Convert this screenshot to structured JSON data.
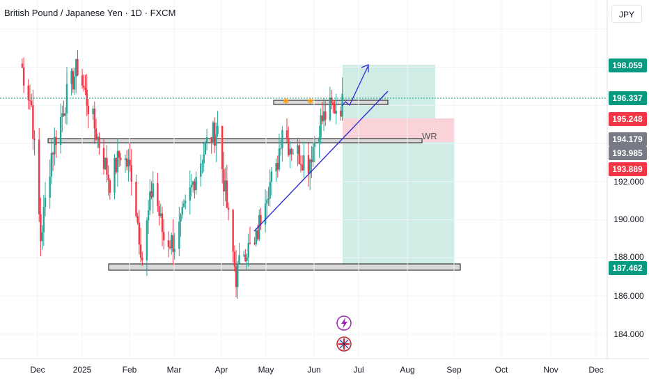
{
  "header": {
    "title": "British Pound / Japanese Yen · 1D · FXCM",
    "currency_button": "JPY"
  },
  "colors": {
    "up": "#26a69a",
    "down": "#f23645",
    "target_zone": "#b2dfd5",
    "stop_zone": "#f8c8cd",
    "trendline": "#2828d8",
    "current_price_line": "#089981"
  },
  "chart_data": {
    "type": "candlestick",
    "symbol": "GBPJPY",
    "interval": "1D",
    "ylim": [
      183.0,
      201.0
    ],
    "y_ticks": [
      "184.000",
      "186.000",
      "188.000",
      "190.000",
      "192.000"
    ],
    "x_ticks": [
      "Dec",
      "2025",
      "Feb",
      "Mar",
      "Apr",
      "May",
      "Jun",
      "Jul",
      "Aug",
      "Sep",
      "Oct",
      "Nov",
      "Dec"
    ],
    "price_labels": [
      {
        "value": "198.059",
        "kind": "target"
      },
      {
        "value": "196.337",
        "kind": "current"
      },
      {
        "value": "195.248",
        "kind": "stop"
      },
      {
        "value": "194.179",
        "kind": "level"
      },
      {
        "value": "193.985",
        "kind": "level"
      },
      {
        "value": "193.889",
        "kind": "entry"
      },
      {
        "value": "187.462",
        "kind": "target"
      }
    ],
    "annotations": [
      "WR"
    ],
    "waypoints": [
      [
        "2024-11-20",
        198.2
      ],
      [
        "2024-11-27",
        196.0
      ],
      [
        "2024-12-03",
        189.0
      ],
      [
        "2024-12-10",
        193.5
      ],
      [
        "2024-12-20",
        196.5
      ],
      [
        "2024-12-27",
        198.0
      ],
      [
        "2025-01-03",
        196.0
      ],
      [
        "2025-01-10",
        194.0
      ],
      [
        "2025-01-17",
        192.0
      ],
      [
        "2025-01-24",
        193.5
      ],
      [
        "2025-01-31",
        192.5
      ],
      [
        "2025-02-07",
        188.0
      ],
      [
        "2025-02-14",
        192.0
      ],
      [
        "2025-02-21",
        189.0
      ],
      [
        "2025-02-28",
        188.8
      ],
      [
        "2025-03-07",
        190.5
      ],
      [
        "2025-03-14",
        192.5
      ],
      [
        "2025-03-21",
        194.0
      ],
      [
        "2025-03-28",
        194.8
      ],
      [
        "2025-04-04",
        190.0
      ],
      [
        "2025-04-09",
        187.0
      ],
      [
        "2025-04-14",
        188.5
      ],
      [
        "2025-04-21",
        188.5
      ],
      [
        "2025-04-28",
        191.5
      ],
      [
        "2025-05-05",
        192.5
      ],
      [
        "2025-05-09",
        195.0
      ],
      [
        "2025-05-13",
        194.0
      ],
      [
        "2025-05-19",
        193.5
      ],
      [
        "2025-05-26",
        193.0
      ],
      [
        "2025-06-02",
        195.0
      ],
      [
        "2025-06-09",
        195.8
      ],
      [
        "2025-06-16",
        196.0
      ],
      [
        "2025-06-20",
        196.3
      ]
    ]
  }
}
